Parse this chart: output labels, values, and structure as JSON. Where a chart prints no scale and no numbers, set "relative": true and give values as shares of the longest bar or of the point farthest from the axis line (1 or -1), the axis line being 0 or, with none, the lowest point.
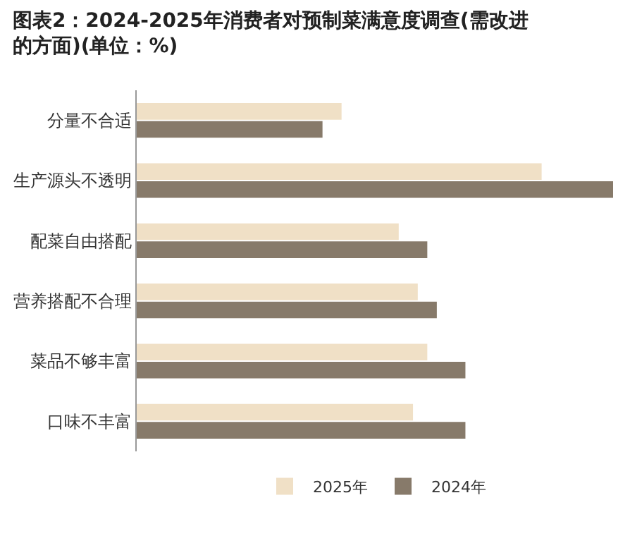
{
  "chart_data": {
    "type": "bar",
    "orientation": "horizontal",
    "relative": true,
    "title": "图表2：2024-2025年消费者对预制菜满意度调查(需改进的方面)(单位：%)",
    "categories": [
      "分量不合适",
      "生产源头不透明",
      "配菜自由搭配",
      "营养搭配不合理",
      "菜品不够丰富",
      "口味不丰富"
    ],
    "series": [
      {
        "name": "2025年",
        "color": "#f0e0c6",
        "values": [
          0.43,
          0.85,
          0.55,
          0.59,
          0.61,
          0.58
        ]
      },
      {
        "name": "2024年",
        "color": "#877a6a",
        "values": [
          0.39,
          1,
          0.61,
          0.63,
          0.69,
          0.69
        ]
      }
    ],
    "legend": "bottom",
    "grid": false
  }
}
